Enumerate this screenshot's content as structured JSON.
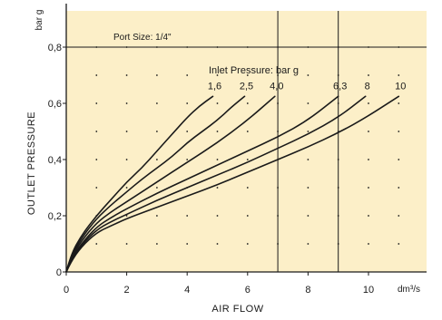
{
  "colors": {
    "background": "#FCEFC8",
    "axis": "#1a1a1a",
    "curve": "#1a1a1a",
    "dots": "#1a1a1a"
  },
  "chart_data": {
    "type": "line",
    "title": "Port Size: 1/4\"",
    "xlabel": "AIR FLOW",
    "ylabel": "OUTLET PRESSURE",
    "x_unit": "dm³/s",
    "y_unit": "bar g",
    "xlim": [
      0,
      12
    ],
    "ylim": [
      0,
      0.88
    ],
    "x_ticks": [
      0,
      2,
      4,
      6,
      8,
      10
    ],
    "x_tick_labels": [
      "0",
      "2",
      "4",
      "6",
      "8",
      "10"
    ],
    "y_ticks": [
      0,
      0.2,
      0.4,
      0.6,
      0.8
    ],
    "y_tick_labels": [
      "0",
      "0,2",
      "0,4",
      "0,6",
      "0,8"
    ],
    "grid": "dotted",
    "reference_lines": {
      "x": [
        7,
        9
      ],
      "y": [
        0.8
      ]
    },
    "legend_title": "Inlet Pressure: bar g",
    "series": [
      {
        "name": "1,6",
        "x": [
          0,
          0.15,
          0.5,
          1.0,
          1.5,
          2.0,
          2.5,
          3.0,
          3.5,
          4.0,
          4.4,
          4.85
        ],
        "y": [
          0,
          0.06,
          0.13,
          0.2,
          0.26,
          0.32,
          0.37,
          0.43,
          0.49,
          0.55,
          0.59,
          0.625
        ]
      },
      {
        "name": "2,5",
        "x": [
          0,
          0.15,
          0.5,
          1.0,
          1.5,
          2.0,
          2.5,
          3.0,
          3.5,
          4.0,
          4.5,
          5.0,
          5.5,
          5.9
        ],
        "y": [
          0,
          0.055,
          0.12,
          0.19,
          0.24,
          0.285,
          0.33,
          0.37,
          0.41,
          0.46,
          0.5,
          0.54,
          0.59,
          0.625
        ]
      },
      {
        "name": "4,0",
        "x": [
          0,
          0.15,
          0.5,
          1.0,
          1.5,
          2.0,
          3.0,
          4.0,
          5.0,
          6.0,
          6.9
        ],
        "y": [
          0,
          0.05,
          0.11,
          0.175,
          0.215,
          0.25,
          0.32,
          0.39,
          0.46,
          0.54,
          0.625
        ]
      },
      {
        "name": "6,3",
        "x": [
          0,
          0.15,
          0.5,
          1.0,
          1.5,
          2.0,
          3.0,
          4.0,
          5.0,
          6.0,
          7.0,
          8.0,
          9.0
        ],
        "y": [
          0,
          0.045,
          0.1,
          0.16,
          0.195,
          0.225,
          0.28,
          0.33,
          0.38,
          0.43,
          0.48,
          0.54,
          0.625
        ]
      },
      {
        "name": "8",
        "x": [
          0,
          0.15,
          0.5,
          1.0,
          1.5,
          2.0,
          3.0,
          4.0,
          5.0,
          6.0,
          7.0,
          8.0,
          9.0,
          9.9
        ],
        "y": [
          0,
          0.04,
          0.095,
          0.15,
          0.18,
          0.205,
          0.255,
          0.3,
          0.345,
          0.39,
          0.44,
          0.49,
          0.55,
          0.625
        ]
      },
      {
        "name": "10",
        "x": [
          0,
          0.15,
          0.5,
          1.0,
          1.5,
          2.0,
          3.0,
          4.0,
          5.0,
          6.0,
          7.0,
          8.0,
          9.0,
          10.0,
          11.0
        ],
        "y": [
          0,
          0.035,
          0.09,
          0.14,
          0.165,
          0.19,
          0.23,
          0.27,
          0.31,
          0.355,
          0.4,
          0.445,
          0.495,
          0.555,
          0.625
        ]
      }
    ]
  }
}
